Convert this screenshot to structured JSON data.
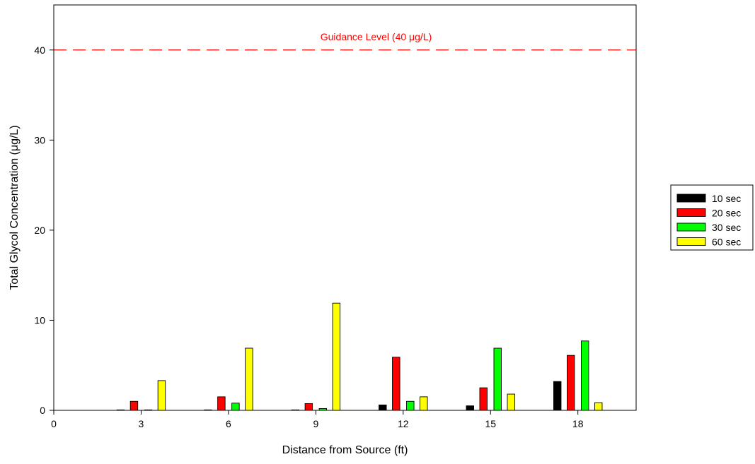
{
  "chart_data": {
    "type": "bar",
    "xlabel": "Distance from Source (ft)",
    "ylabel": "Total Glycol Concentration (μg/L)",
    "xlim": [
      0,
      20
    ],
    "ylim": [
      0,
      45
    ],
    "x_ticks": [
      0,
      3,
      6,
      9,
      12,
      15,
      18
    ],
    "y_ticks": [
      0,
      10,
      20,
      30,
      40
    ],
    "categories": [
      3,
      6,
      9,
      12,
      15,
      18
    ],
    "series": [
      {
        "name": "10 sec",
        "color": "#000000",
        "values": [
          0.05,
          0.05,
          0.05,
          0.6,
          0.5,
          3.2
        ]
      },
      {
        "name": "20 sec",
        "color": "#ff0000",
        "values": [
          1.0,
          1.5,
          0.75,
          5.9,
          2.5,
          6.1
        ]
      },
      {
        "name": "30 sec",
        "color": "#00ff00",
        "values": [
          0.05,
          0.8,
          0.2,
          1.0,
          6.9,
          7.7
        ]
      },
      {
        "name": "60 sec",
        "color": "#ffff00",
        "values": [
          3.3,
          6.9,
          11.9,
          1.5,
          1.8,
          0.85
        ]
      }
    ],
    "reference_line": {
      "value": 40,
      "label": "Guidance Level (40 μg/L)",
      "color": "#ff0000",
      "style": "dashed"
    },
    "legend_position": "right",
    "grid": false
  }
}
